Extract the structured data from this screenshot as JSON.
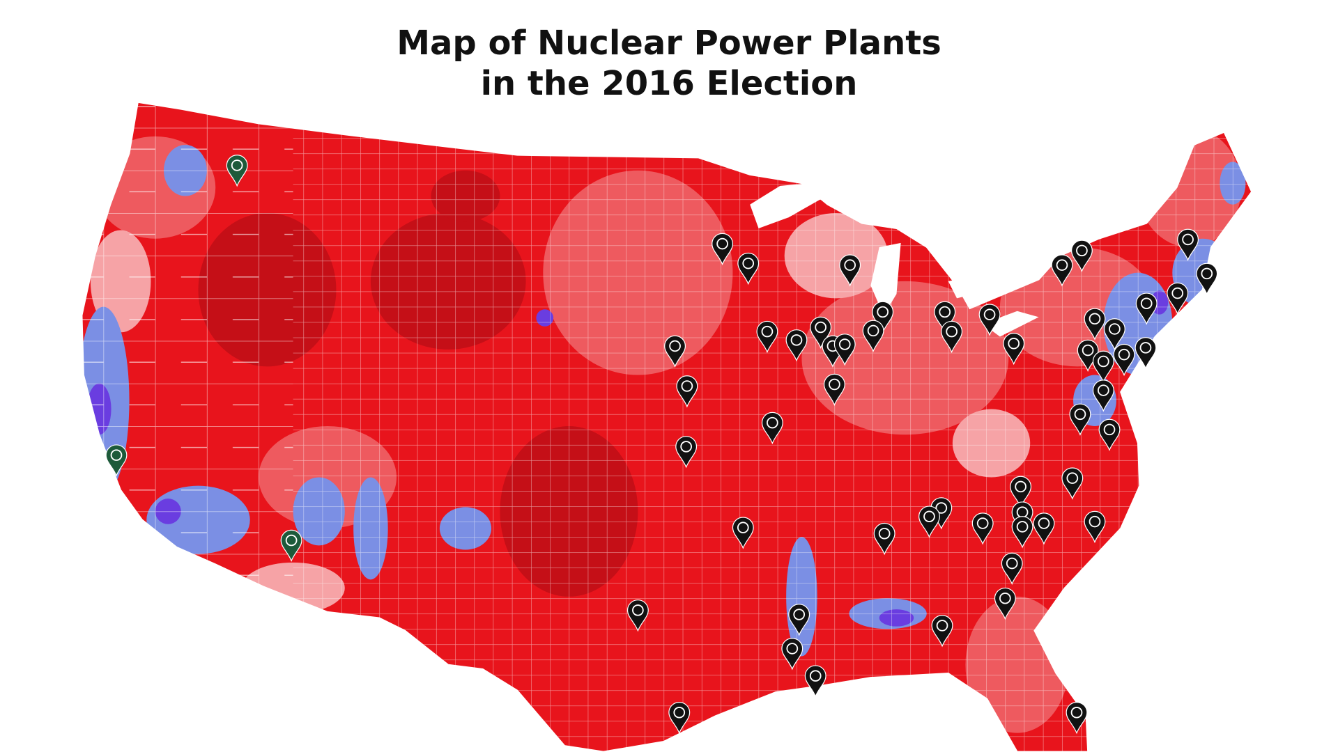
{
  "title": {
    "lines": [
      "Map of Nuclear Power Plants",
      "in the 2016 Election"
    ]
  }
}
